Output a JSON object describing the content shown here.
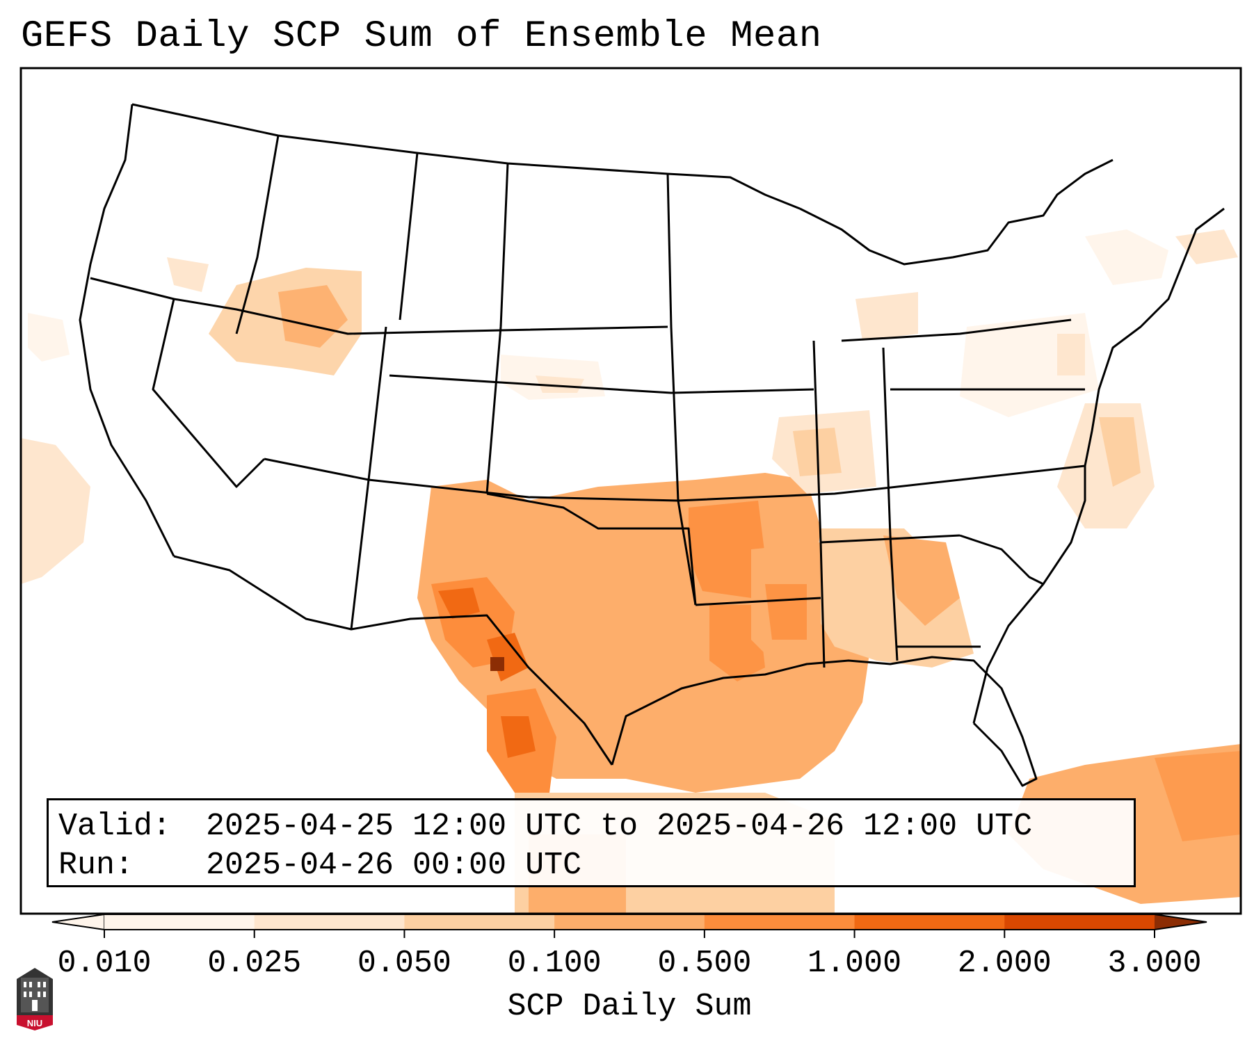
{
  "title": "GEFS Daily SCP Sum of Ensemble Mean",
  "info": {
    "valid_label": "Valid:",
    "valid_value": "2025-04-25 12:00 UTC to 2025-04-26 12:00 UTC",
    "run_label": "Run:",
    "run_value": "2025-04-26 00:00 UTC"
  },
  "colorbar": {
    "label": "SCP Daily Sum",
    "ticks": [
      "0.010",
      "0.025",
      "0.050",
      "0.100",
      "0.500",
      "1.000",
      "2.000",
      "3.000"
    ],
    "colors": [
      "#fff5eb",
      "#fee6ce",
      "#fdd0a2",
      "#fdae6b",
      "#fd8d3c",
      "#f16913",
      "#d94801",
      "#8c2d04"
    ],
    "extend": "both"
  },
  "logo": {
    "text": "NIU",
    "color": "#c8102e"
  },
  "map": {
    "field": "SCP",
    "region": "CONUS"
  }
}
